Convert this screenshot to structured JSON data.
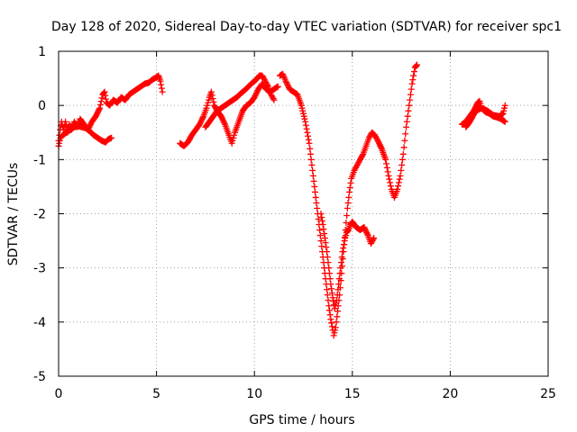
{
  "chart_data": {
    "type": "scatter",
    "title": "Day 128 of 2020, Sidereal Day-to-day VTEC variation (SDTVAR) for receiver spc1",
    "xlabel": "GPS time / hours",
    "ylabel": "SDTVAR / TECUs",
    "xlim": [
      0,
      25
    ],
    "ylim": [
      -5,
      1
    ],
    "xticks": [
      "0",
      "5",
      "10",
      "15",
      "20",
      "25"
    ],
    "yticks": [
      "-5",
      "-4",
      "-3",
      "-2",
      "-1",
      "0",
      "1"
    ],
    "grid": true,
    "marker": "+",
    "marker_color": "#ff0000",
    "segments": [
      [
        [
          0.0,
          -0.65
        ],
        [
          0.08,
          -0.45
        ],
        [
          0.15,
          -0.3
        ],
        [
          0.25,
          -0.45
        ],
        [
          0.35,
          -0.3
        ],
        [
          0.45,
          -0.5
        ],
        [
          0.55,
          -0.35
        ],
        [
          0.65,
          -0.45
        ],
        [
          0.8,
          -0.3
        ],
        [
          0.95,
          -0.4
        ],
        [
          1.1,
          -0.25
        ],
        [
          1.3,
          -0.35
        ],
        [
          1.5,
          -0.45
        ],
        [
          1.7,
          -0.3
        ],
        [
          1.9,
          -0.2
        ],
        [
          2.1,
          -0.05
        ],
        [
          2.25,
          0.2
        ],
        [
          2.35,
          0.25
        ],
        [
          2.45,
          0.05
        ],
        [
          2.6,
          0.0
        ],
        [
          2.8,
          0.1
        ],
        [
          3.0,
          0.05
        ],
        [
          3.2,
          0.15
        ],
        [
          3.4,
          0.1
        ],
        [
          3.6,
          0.2
        ],
        [
          3.8,
          0.25
        ],
        [
          4.0,
          0.3
        ],
        [
          4.2,
          0.35
        ],
        [
          4.4,
          0.4
        ],
        [
          4.6,
          0.42
        ],
        [
          4.8,
          0.48
        ],
        [
          5.0,
          0.52
        ],
        [
          5.1,
          0.55
        ],
        [
          5.2,
          0.45
        ],
        [
          5.3,
          0.25
        ]
      ],
      [
        [
          0.0,
          -0.75
        ],
        [
          0.1,
          -0.6
        ],
        [
          0.2,
          -0.55
        ],
        [
          0.4,
          -0.5
        ],
        [
          0.6,
          -0.45
        ],
        [
          0.8,
          -0.4
        ],
        [
          1.0,
          -0.38
        ],
        [
          1.2,
          -0.4
        ],
        [
          1.4,
          -0.42
        ],
        [
          1.6,
          -0.48
        ],
        [
          1.8,
          -0.55
        ],
        [
          2.0,
          -0.6
        ],
        [
          2.2,
          -0.65
        ],
        [
          2.4,
          -0.68
        ],
        [
          2.55,
          -0.62
        ],
        [
          2.7,
          -0.6
        ]
      ],
      [
        [
          6.2,
          -0.7
        ],
        [
          6.4,
          -0.75
        ],
        [
          6.6,
          -0.68
        ],
        [
          6.8,
          -0.55
        ],
        [
          7.0,
          -0.45
        ],
        [
          7.2,
          -0.35
        ],
        [
          7.4,
          -0.2
        ],
        [
          7.55,
          -0.05
        ],
        [
          7.7,
          0.15
        ],
        [
          7.8,
          0.25
        ],
        [
          7.95,
          0.0
        ],
        [
          8.1,
          -0.1
        ],
        [
          8.3,
          -0.2
        ],
        [
          8.5,
          -0.35
        ],
        [
          8.7,
          -0.55
        ],
        [
          8.85,
          -0.7
        ],
        [
          9.0,
          -0.5
        ],
        [
          9.2,
          -0.3
        ],
        [
          9.4,
          -0.1
        ],
        [
          9.6,
          0.0
        ],
        [
          9.8,
          0.05
        ],
        [
          10.0,
          0.15
        ],
        [
          10.2,
          0.3
        ],
        [
          10.4,
          0.4
        ],
        [
          10.6,
          0.3
        ],
        [
          10.8,
          0.25
        ],
        [
          11.0,
          0.3
        ],
        [
          11.2,
          0.35
        ]
      ],
      [
        [
          7.5,
          -0.4
        ],
        [
          7.7,
          -0.3
        ],
        [
          7.9,
          -0.2
        ],
        [
          8.1,
          -0.1
        ],
        [
          8.3,
          -0.05
        ],
        [
          8.5,
          0.0
        ],
        [
          8.7,
          0.05
        ],
        [
          8.9,
          0.1
        ],
        [
          9.1,
          0.15
        ],
        [
          9.3,
          0.22
        ],
        [
          9.5,
          0.28
        ],
        [
          9.7,
          0.35
        ],
        [
          9.9,
          0.42
        ],
        [
          10.1,
          0.48
        ],
        [
          10.25,
          0.55
        ],
        [
          10.4,
          0.55
        ],
        [
          10.55,
          0.45
        ],
        [
          10.7,
          0.35
        ],
        [
          10.85,
          0.2
        ],
        [
          11.0,
          0.1
        ]
      ],
      [
        [
          11.3,
          0.55
        ],
        [
          11.45,
          0.58
        ],
        [
          11.6,
          0.45
        ],
        [
          11.8,
          0.3
        ],
        [
          12.0,
          0.25
        ],
        [
          12.2,
          0.2
        ],
        [
          12.4,
          0.0
        ],
        [
          12.6,
          -0.3
        ],
        [
          12.8,
          -0.7
        ],
        [
          12.9,
          -1.0
        ],
        [
          13.0,
          -1.3
        ],
        [
          13.1,
          -1.6
        ],
        [
          13.2,
          -1.9
        ],
        [
          13.3,
          -2.2
        ],
        [
          13.4,
          -2.5
        ],
        [
          13.5,
          -2.8
        ],
        [
          13.6,
          -3.1
        ],
        [
          13.7,
          -3.4
        ],
        [
          13.8,
          -3.7
        ],
        [
          13.9,
          -3.95
        ],
        [
          14.0,
          -4.15
        ],
        [
          14.05,
          -4.25
        ],
        [
          14.15,
          -4.1
        ],
        [
          14.25,
          -3.8
        ],
        [
          14.35,
          -3.5
        ],
        [
          14.45,
          -3.1
        ],
        [
          14.55,
          -2.7
        ],
        [
          14.65,
          -2.3
        ],
        [
          14.75,
          -1.9
        ],
        [
          14.85,
          -1.6
        ],
        [
          14.95,
          -1.35
        ],
        [
          15.1,
          -1.2
        ],
        [
          15.25,
          -1.1
        ],
        [
          15.4,
          -1.0
        ],
        [
          15.55,
          -0.9
        ],
        [
          15.7,
          -0.75
        ],
        [
          15.85,
          -0.6
        ],
        [
          16.0,
          -0.5
        ],
        [
          16.15,
          -0.55
        ],
        [
          16.3,
          -0.65
        ],
        [
          16.5,
          -0.8
        ],
        [
          16.7,
          -1.0
        ],
        [
          16.85,
          -1.3
        ],
        [
          17.0,
          -1.55
        ],
        [
          17.15,
          -1.7
        ],
        [
          17.3,
          -1.55
        ],
        [
          17.45,
          -1.3
        ],
        [
          17.6,
          -0.9
        ],
        [
          17.75,
          -0.4
        ],
        [
          17.9,
          0.0
        ],
        [
          18.05,
          0.4
        ],
        [
          18.2,
          0.7
        ],
        [
          18.3,
          0.75
        ]
      ],
      [
        [
          13.4,
          -2.0
        ],
        [
          13.5,
          -2.2
        ],
        [
          13.6,
          -2.45
        ],
        [
          13.7,
          -2.7
        ],
        [
          13.8,
          -3.0
        ],
        [
          13.9,
          -3.3
        ],
        [
          14.0,
          -3.55
        ],
        [
          14.1,
          -3.75
        ],
        [
          14.2,
          -3.6
        ],
        [
          14.3,
          -3.3
        ],
        [
          14.4,
          -3.0
        ],
        [
          14.5,
          -2.7
        ],
        [
          14.6,
          -2.5
        ],
        [
          14.7,
          -2.35
        ],
        [
          14.8,
          -2.3
        ],
        [
          14.9,
          -2.2
        ],
        [
          15.0,
          -2.15
        ],
        [
          15.2,
          -2.25
        ],
        [
          15.4,
          -2.3
        ],
        [
          15.6,
          -2.25
        ],
        [
          15.8,
          -2.4
        ],
        [
          15.95,
          -2.55
        ],
        [
          16.1,
          -2.45
        ]
      ],
      [
        [
          20.6,
          -0.35
        ],
        [
          20.8,
          -0.3
        ],
        [
          21.0,
          -0.2
        ],
        [
          21.2,
          -0.1
        ],
        [
          21.4,
          0.05
        ],
        [
          21.5,
          0.08
        ],
        [
          21.6,
          -0.05
        ],
        [
          21.8,
          -0.12
        ],
        [
          22.0,
          -0.15
        ],
        [
          22.2,
          -0.2
        ],
        [
          22.4,
          -0.22
        ],
        [
          22.6,
          -0.25
        ],
        [
          22.8,
          -0.3
        ]
      ],
      [
        [
          20.8,
          -0.4
        ],
        [
          21.0,
          -0.3
        ],
        [
          21.3,
          -0.1
        ],
        [
          21.6,
          -0.05
        ],
        [
          21.9,
          -0.1
        ],
        [
          22.2,
          -0.18
        ],
        [
          22.5,
          -0.2
        ],
        [
          22.7,
          -0.15
        ],
        [
          22.8,
          0.0
        ]
      ]
    ]
  }
}
